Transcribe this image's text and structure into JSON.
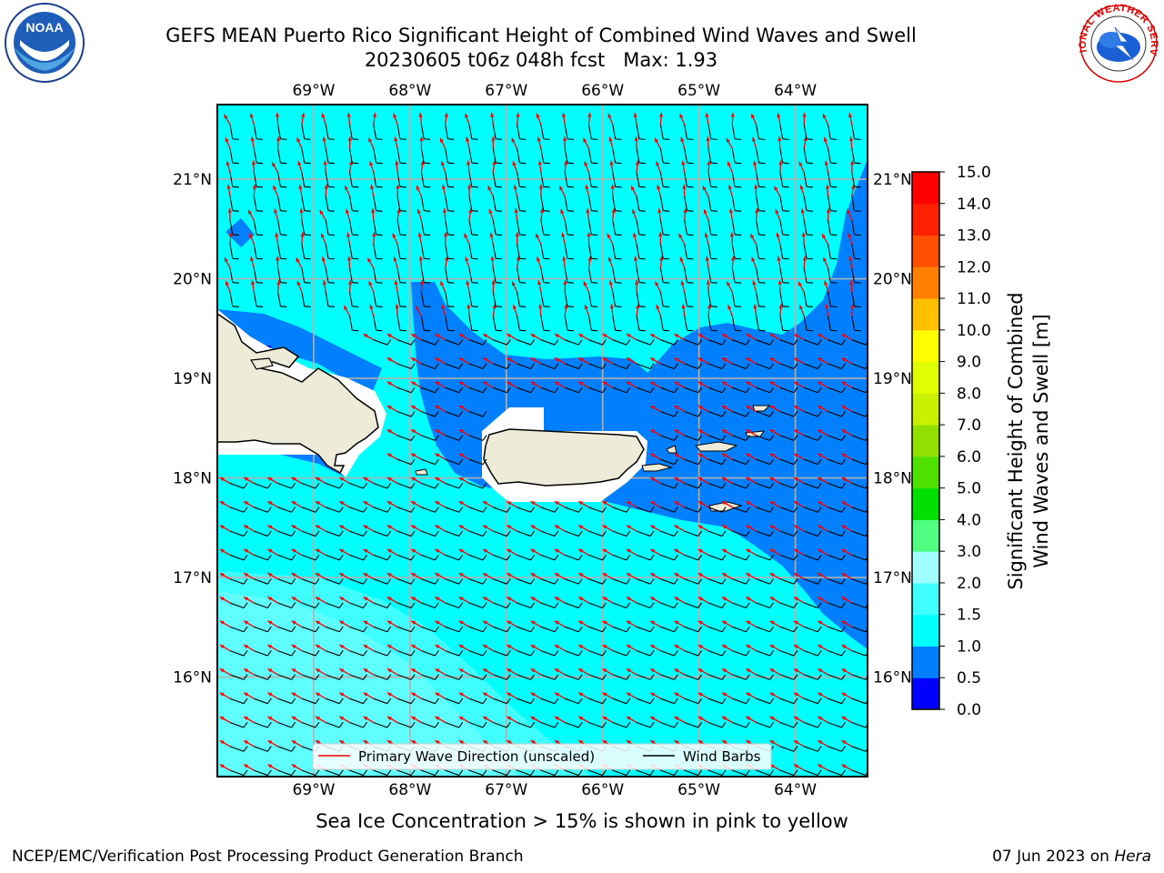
{
  "header": {
    "title_line1": "GEFS MEAN Puerto Rico Significant Height of Combined Wind Waves and Swell",
    "title_line2": "20230605 t06z 048h fcst   Max: 1.93"
  },
  "map": {
    "region": "Puerto Rico",
    "lon_range": [
      -70.0,
      -63.25
    ],
    "lat_range": [
      15.0,
      21.75
    ],
    "lon_ticks": [
      "69°W",
      "68°W",
      "67°W",
      "66°W",
      "65°W",
      "64°W"
    ],
    "lat_ticks": [
      "21°N",
      "20°N",
      "19°N",
      "18°N",
      "17°N",
      "16°N"
    ],
    "field": "Significant Height of Combined Wind Waves and Swell",
    "field_max": 1.93,
    "colors": {
      "ocean_bg": "#00ffff",
      "band_0_0_5": "#0000ff",
      "band_0_5_1_0": "#0080ff",
      "band_1_0_1_5": "#00ffff",
      "band_1_5_2_0": "#40ffff",
      "band_2_0_3_0": "#a0ffff",
      "land": "#efebd9",
      "coastline": "#000000",
      "gridline": "#b0b0b0",
      "wave_arrow": "#ff0000",
      "wind_barb": "#000000"
    }
  },
  "legend": {
    "wave_label": "Primary Wave Direction (unscaled)",
    "barb_label": "Wind Barbs"
  },
  "colorbar": {
    "label_line1": "Significant Height of Combined",
    "label_line2": "Wind Waves and Swell [m]",
    "ticks": [
      "0.0",
      "0.5",
      "1.0",
      "1.5",
      "2.0",
      "3.0",
      "4.0",
      "5.0",
      "6.0",
      "7.0",
      "8.0",
      "9.0",
      "10.0",
      "11.0",
      "12.0",
      "13.0",
      "14.0",
      "15.0"
    ],
    "colors": [
      "#0000ff",
      "#0080ff",
      "#00ffff",
      "#40ffff",
      "#a0ffff",
      "#50ff80",
      "#00e000",
      "#50e000",
      "#90e000",
      "#c8f000",
      "#e0ff00",
      "#ffff00",
      "#ffc000",
      "#ff8000",
      "#ff5000",
      "#ff2000",
      "#ff0000"
    ]
  },
  "footer": {
    "note": "Sea Ice Concentration > 15% is shown in pink to yellow",
    "credit_left": "NCEP/EMC/Verification Post Processing Product Generation Branch",
    "date": "07 Jun 2023 on ",
    "machine": "Hera"
  },
  "logos": {
    "noaa_text": "NOAA",
    "nws_text": "NATIONAL WEATHER SERVICE"
  }
}
